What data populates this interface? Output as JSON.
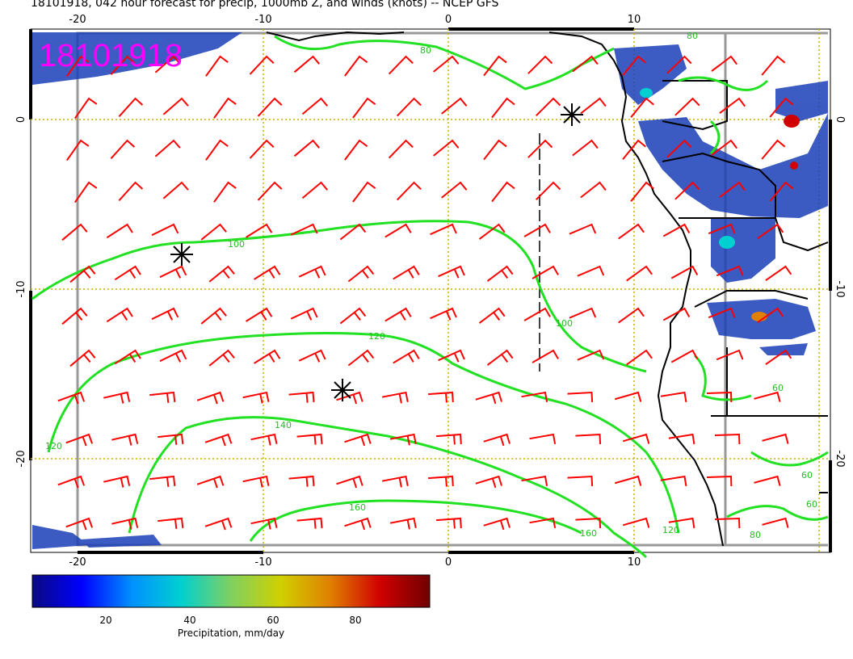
{
  "title": "18101918, 042 hour forecast for precip, 1000mb Z, and winds (knots) -- NCEP GFS",
  "stamp": "18101918",
  "x_ticks": [
    "-20",
    "-10",
    "0",
    "10"
  ],
  "y_ticks": [
    "0",
    "-10",
    "-20"
  ],
  "contour_labels": [
    "80",
    "100",
    "120",
    "140",
    "160",
    "100",
    "120",
    "160",
    "60",
    "60",
    "80",
    "60",
    "120",
    "80"
  ],
  "colorbar": {
    "ticks": [
      "20",
      "40",
      "60",
      "80"
    ],
    "label": "Precipitation, mm/day",
    "colors": [
      "#0a0a80",
      "#0000ff",
      "#0090ff",
      "#00d0d0",
      "#80d060",
      "#d0d000",
      "#e08000",
      "#d00000",
      "#700000"
    ]
  },
  "colors": {
    "contour": "#22e022",
    "barb": "#ff0000",
    "grid": "#c8b000",
    "stamp": "#ff00ff",
    "precip": "#1a3fb8"
  }
}
